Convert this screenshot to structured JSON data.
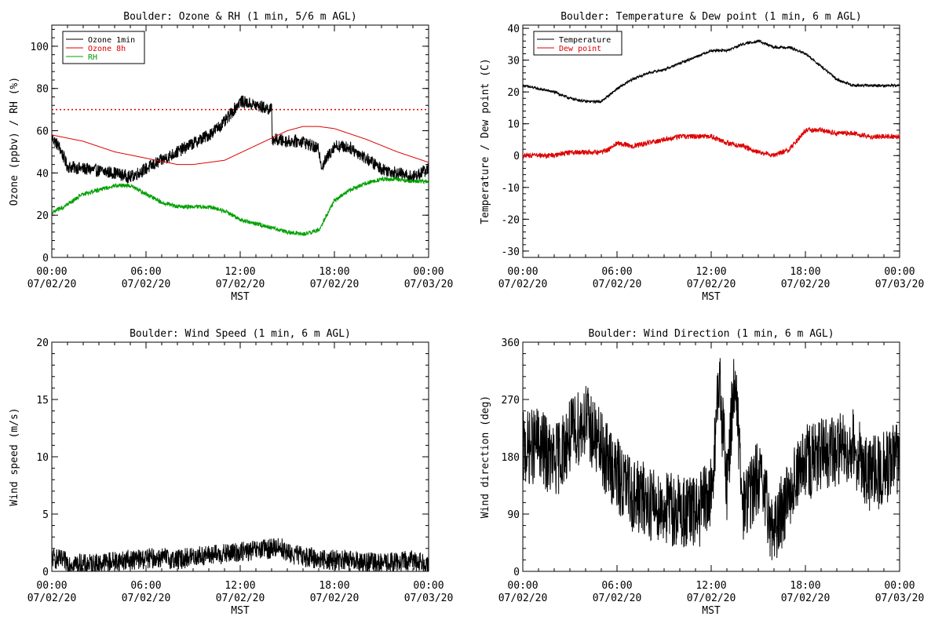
{
  "chart_data": [
    {
      "type": "line",
      "title": "Boulder: Ozone & RH (1 min, 5/6 m AGL)",
      "ylabel": "Ozone (ppbv) / RH (%)",
      "xlabel": "MST",
      "ylim": [
        0,
        110
      ],
      "yticks": [
        0,
        20,
        40,
        60,
        80,
        100
      ],
      "xticks": [
        {
          "hour": 0,
          "time": "00:00",
          "date": "07/02/20"
        },
        {
          "hour": 6,
          "time": "06:00",
          "date": "07/02/20"
        },
        {
          "hour": 12,
          "time": "12:00",
          "date": "07/02/20"
        },
        {
          "hour": 18,
          "time": "18:00",
          "date": "07/02/20"
        },
        {
          "hour": 24,
          "time": "00:00",
          "date": "07/03/20"
        }
      ],
      "xlim_hours": [
        0,
        24
      ],
      "legend_position": "top-left",
      "reference_line": {
        "value": 70,
        "color": "#dd0000",
        "style": "dotted"
      },
      "series": [
        {
          "name": "Ozone 1min",
          "color": "#000000",
          "noise": 3,
          "hours": [
            0,
            0.5,
            1,
            2,
            3,
            4,
            5,
            6,
            7,
            8,
            9,
            10,
            11,
            12,
            13,
            14,
            14.05,
            15,
            16,
            17,
            17.2,
            18,
            19,
            20,
            21,
            22,
            23,
            24
          ],
          "values": [
            57,
            52,
            43,
            42,
            41,
            40,
            38,
            42,
            46,
            50,
            54,
            58,
            64,
            74,
            72,
            70,
            56,
            55,
            55,
            51,
            43,
            53,
            52,
            47,
            42,
            40,
            38,
            42
          ]
        },
        {
          "name": "Ozone 8h",
          "color": "#dd0000",
          "noise": 0,
          "hours": [
            0,
            2,
            4,
            6,
            8,
            9,
            11,
            13,
            15,
            16,
            17,
            18,
            20,
            22,
            24
          ],
          "values": [
            58,
            55,
            50,
            47,
            44,
            44,
            46,
            53,
            60,
            62,
            62,
            61,
            56,
            50,
            45
          ]
        },
        {
          "name": "RH",
          "color": "#00a000",
          "noise": 1,
          "hours": [
            0,
            1,
            2,
            3,
            4,
            5,
            6,
            7,
            8,
            9,
            10,
            11,
            12,
            13,
            14,
            15,
            16,
            17,
            17.5,
            18,
            19,
            20,
            21,
            22,
            23,
            24
          ],
          "values": [
            21,
            25,
            30,
            32,
            34,
            34,
            30,
            26,
            24,
            24,
            24,
            22,
            18,
            16,
            14,
            12,
            11,
            13,
            20,
            27,
            32,
            35,
            37,
            37,
            36,
            36
          ]
        }
      ]
    },
    {
      "type": "line",
      "title": "Boulder: Temperature & Dew point (1 min, 6 m AGL)",
      "ylabel": "Temperature / Dew point (C)",
      "xlabel": "MST",
      "ylim": [
        -32,
        41
      ],
      "yticks": [
        -30,
        -20,
        -10,
        0,
        10,
        20,
        30,
        40
      ],
      "xticks": [
        {
          "hour": 0,
          "time": "00:00",
          "date": "07/02/20"
        },
        {
          "hour": 6,
          "time": "06:00",
          "date": "07/02/20"
        },
        {
          "hour": 12,
          "time": "12:00",
          "date": "07/02/20"
        },
        {
          "hour": 18,
          "time": "18:00",
          "date": "07/02/20"
        },
        {
          "hour": 24,
          "time": "00:00",
          "date": "07/03/20"
        }
      ],
      "xlim_hours": [
        0,
        24
      ],
      "legend_position": "top-left",
      "series": [
        {
          "name": "Temperature",
          "color": "#000000",
          "noise": 0.4,
          "hours": [
            0,
            1,
            2,
            3,
            4,
            5,
            6,
            7,
            8,
            9,
            10,
            11,
            12,
            13,
            14,
            15,
            16,
            17,
            18,
            19,
            20,
            21,
            22,
            23,
            24
          ],
          "values": [
            22,
            21,
            20,
            18,
            17,
            17,
            21,
            24,
            26,
            27,
            29,
            31,
            33,
            33,
            35,
            36,
            34,
            34,
            32,
            28,
            24,
            22,
            22,
            22,
            22
          ]
        },
        {
          "name": "Dew point",
          "color": "#dd0000",
          "noise": 0.8,
          "hours": [
            0,
            1,
            2,
            3,
            4,
            5,
            5.5,
            6,
            7,
            8,
            9,
            10,
            11,
            12,
            13,
            14,
            15,
            16,
            17,
            17.5,
            18,
            19,
            20,
            21,
            22,
            23,
            24
          ],
          "values": [
            0,
            0,
            0,
            1,
            1,
            1,
            2,
            4,
            3,
            4,
            5,
            6,
            6,
            6,
            4,
            3,
            1,
            0,
            2,
            5,
            8,
            8,
            7,
            7,
            6,
            6,
            6
          ]
        }
      ]
    },
    {
      "type": "line",
      "title": "Boulder: Wind Speed (1 min, 6 m AGL)",
      "ylabel": "Wind speed (m/s)",
      "xlabel": "MST",
      "ylim": [
        0,
        20
      ],
      "yticks": [
        0,
        5,
        10,
        15,
        20
      ],
      "xticks": [
        {
          "hour": 0,
          "time": "00:00",
          "date": "07/02/20"
        },
        {
          "hour": 6,
          "time": "06:00",
          "date": "07/02/20"
        },
        {
          "hour": 12,
          "time": "12:00",
          "date": "07/02/20"
        },
        {
          "hour": 18,
          "time": "18:00",
          "date": "07/02/20"
        },
        {
          "hour": 24,
          "time": "00:00",
          "date": "07/03/20"
        }
      ],
      "xlim_hours": [
        0,
        24
      ],
      "series": [
        {
          "name": "",
          "color": "#000000",
          "noise": 0.9,
          "min": 0,
          "hours": [
            0,
            1,
            2,
            3,
            4,
            5,
            6,
            7,
            8,
            9,
            10,
            11,
            12,
            13,
            14,
            14.5,
            15,
            16,
            17,
            18,
            19,
            20,
            21,
            22,
            23,
            24
          ],
          "values": [
            1.2,
            0.8,
            0.6,
            0.7,
            0.9,
            1.0,
            1.1,
            1.2,
            1.0,
            1.3,
            1.4,
            1.5,
            1.7,
            1.8,
            2.0,
            2.2,
            1.6,
            1.3,
            1.1,
            1.0,
            0.9,
            0.8,
            0.7,
            0.8,
            1.0,
            0.6
          ]
        }
      ]
    },
    {
      "type": "line",
      "title": "Boulder: Wind Direction (1 min, 6 m AGL)",
      "ylabel": "Wind direction (deg)",
      "xlabel": "MST",
      "ylim": [
        0,
        360
      ],
      "yticks": [
        0,
        90,
        180,
        270,
        360
      ],
      "xticks": [
        {
          "hour": 0,
          "time": "00:00",
          "date": "07/02/20"
        },
        {
          "hour": 6,
          "time": "06:00",
          "date": "07/02/20"
        },
        {
          "hour": 12,
          "time": "12:00",
          "date": "07/02/20"
        },
        {
          "hour": 18,
          "time": "18:00",
          "date": "07/02/20"
        },
        {
          "hour": 24,
          "time": "00:00",
          "date": "07/03/20"
        }
      ],
      "xlim_hours": [
        0,
        24
      ],
      "series": [
        {
          "name": "",
          "color": "#000000",
          "noise": 60,
          "min": 0,
          "max": 360,
          "hours": [
            0,
            1,
            2,
            3,
            4,
            5,
            6,
            7,
            8,
            9,
            10,
            11,
            12,
            12.5,
            13,
            13.5,
            14,
            15,
            16,
            17,
            18,
            19,
            20,
            21,
            22,
            23,
            24
          ],
          "values": [
            190,
            200,
            170,
            210,
            240,
            190,
            150,
            120,
            110,
            100,
            95,
            90,
            120,
            300,
            140,
            310,
            100,
            150,
            60,
            130,
            170,
            180,
            190,
            200,
            150,
            160,
            180
          ]
        }
      ]
    }
  ]
}
